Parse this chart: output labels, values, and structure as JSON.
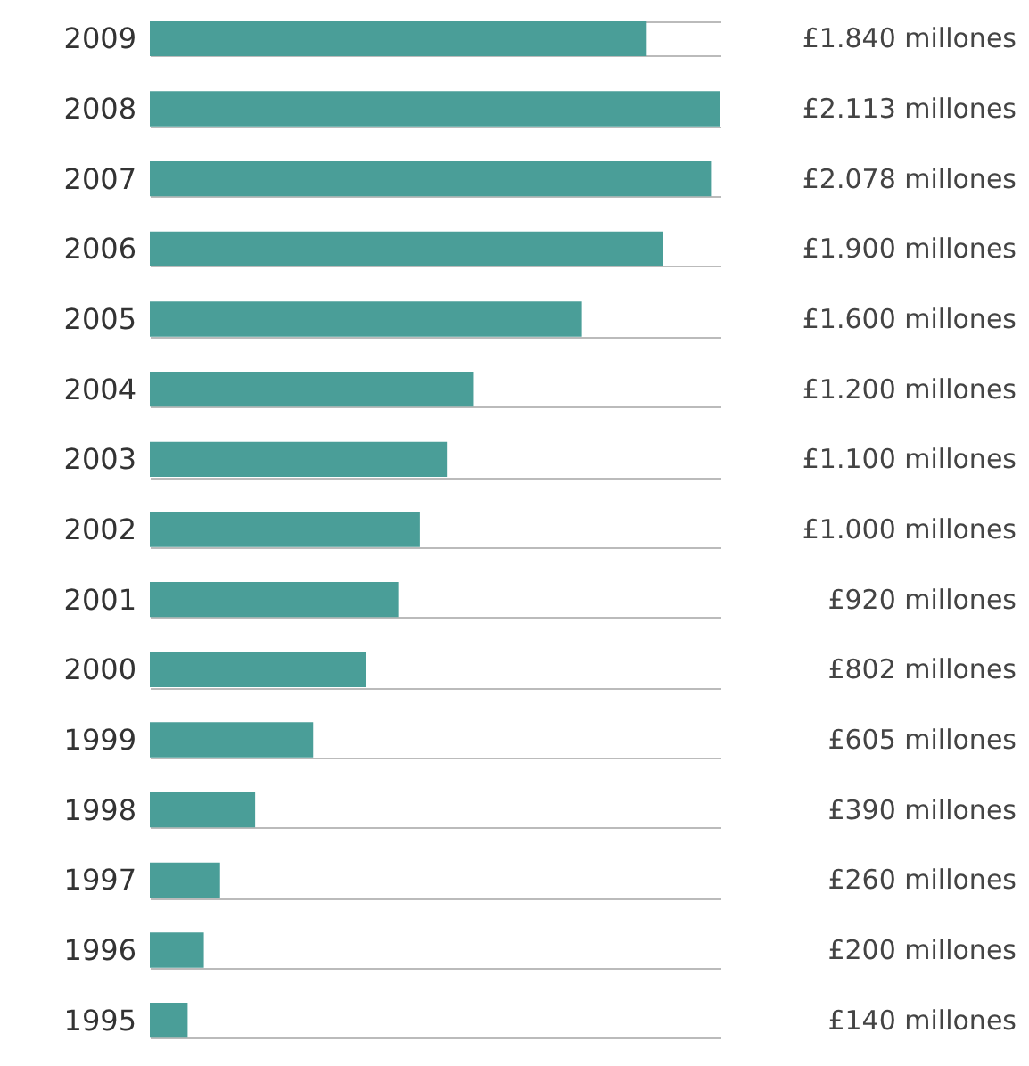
{
  "chart_data": {
    "type": "bar",
    "orientation": "horizontal",
    "categories": [
      "2009",
      "2008",
      "2007",
      "2006",
      "2005",
      "2004",
      "2003",
      "2002",
      "2001",
      "2000",
      "1999",
      "1998",
      "1997",
      "1996",
      "1995"
    ],
    "values": [
      1840,
      2113,
      2078,
      1900,
      1600,
      1200,
      1100,
      1000,
      920,
      802,
      605,
      390,
      260,
      200,
      140
    ],
    "value_labels": [
      "£1.840 millones",
      "£2.113 millones",
      "£2.078 millones",
      "£1.900 millones",
      "£1.600 millones",
      "£1.200 millones",
      "£1.100 millones",
      "£1.000 millones",
      "£920 millones",
      "£802 millones",
      "£605 millones",
      "£390 millones",
      "£260 millones",
      "£200 millones",
      "£140 millones"
    ],
    "color": "#4a9e98",
    "grid": "y",
    "tick_labels": "y"
  }
}
